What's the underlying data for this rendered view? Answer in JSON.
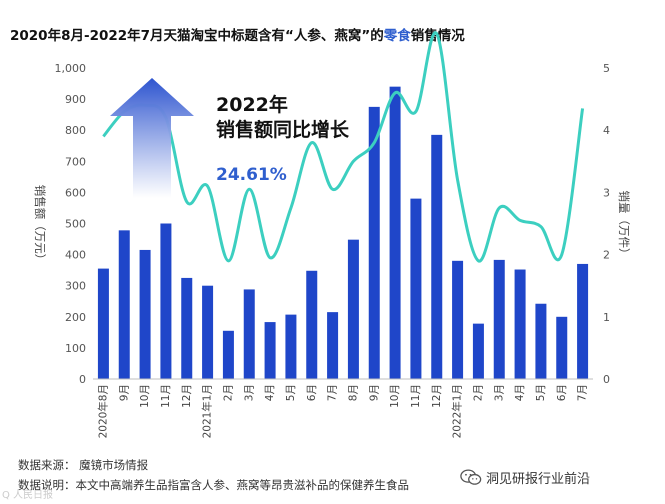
{
  "title": {
    "before": "2020年8月-2022年7月天猫淘宝中标题含有“人参、燕窝”的",
    "highlight": "零食",
    "after": "销售情况"
  },
  "colors": {
    "bar": "#1f46c9",
    "line": "#3ccfc0",
    "highlight": "#2f5fce",
    "arrow_top": "#2d54cf",
    "arrow_bottom": "#ffffff"
  },
  "callout": {
    "line1": "2022年",
    "line2": "销售额同比增长",
    "value": "24.61%",
    "arrow_icon": "up-arrow-icon"
  },
  "chart_data": {
    "type": "bar+line",
    "categories": [
      "2020年8月",
      "9月",
      "10月",
      "11月",
      "12月",
      "2021年1月",
      "2月",
      "3月",
      "4月",
      "5月",
      "6月",
      "7月",
      "8月",
      "9月",
      "10月",
      "11月",
      "12月",
      "2022年1月",
      "2月",
      "3月",
      "4月",
      "5月",
      "6月",
      "7月"
    ],
    "series": [
      {
        "name": "销售额",
        "type": "bar",
        "axis": "left",
        "values": [
          355,
          478,
          415,
          500,
          325,
          300,
          155,
          288,
          183,
          207,
          348,
          215,
          448,
          875,
          940,
          580,
          785,
          380,
          178,
          383,
          352,
          242,
          200,
          370
        ]
      },
      {
        "name": "销量",
        "type": "line",
        "axis": "right",
        "values": [
          3.9,
          4.3,
          4.4,
          4.2,
          2.85,
          3.1,
          1.9,
          3.05,
          1.95,
          2.75,
          3.8,
          3.05,
          3.5,
          3.8,
          4.6,
          4.3,
          5.55,
          3.2,
          1.9,
          2.75,
          2.55,
          2.45,
          2.0,
          4.35
        ]
      }
    ],
    "y_left": {
      "label": "销售额（万元）",
      "ylim": [
        0,
        1000
      ],
      "ticks": [
        "0",
        "100",
        "200",
        "300",
        "400",
        "500",
        "600",
        "700",
        "800",
        "900",
        "1,000"
      ]
    },
    "y_right": {
      "label": "销量（万件）",
      "ylim": [
        0,
        5
      ],
      "ticks": [
        "0",
        "1",
        "2",
        "3",
        "4",
        "5"
      ]
    },
    "grid": false,
    "legend": "none"
  },
  "footer": {
    "source": "数据来源：  魔镜市场情报",
    "note": "数据说明：本文中高端养生品指富含人参、燕窝等昂贵滋补品的保健养生食品"
  },
  "watermark": {
    "text": "洞见研报行业前沿",
    "icon": "wechat-icon"
  },
  "corner_mark": "Q 人民日报"
}
